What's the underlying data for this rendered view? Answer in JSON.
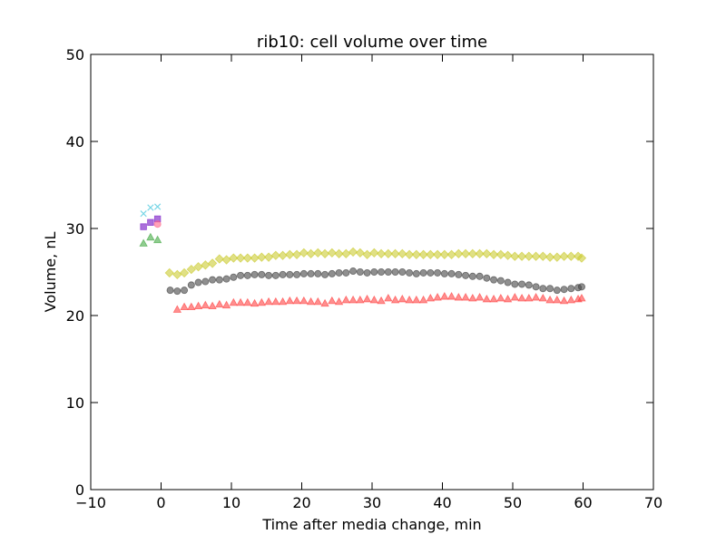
{
  "chart_data": {
    "type": "scatter",
    "title": "rib10: cell volume over time",
    "xlabel": "Time after media change, min",
    "ylabel": "Volume, nL",
    "xlim": [
      -10,
      70
    ],
    "ylim": [
      0,
      50
    ],
    "xticks": [
      -10,
      0,
      10,
      20,
      30,
      40,
      50,
      60,
      70
    ],
    "yticks": [
      0,
      10,
      20,
      30,
      40,
      50
    ],
    "xtick_labels": [
      "−10",
      "0",
      "10",
      "20",
      "30",
      "40",
      "50",
      "60",
      "70"
    ],
    "ytick_labels": [
      "0",
      "10",
      "20",
      "30",
      "40",
      "50"
    ],
    "grid": false,
    "legend": false,
    "series": [
      {
        "marker": "diamond",
        "color": "#cccc33",
        "points": [
          [
            1.2,
            24.9
          ],
          [
            2.3,
            24.7
          ],
          [
            3.3,
            24.9
          ],
          [
            4.3,
            25.3
          ],
          [
            5.3,
            25.6
          ],
          [
            6.3,
            25.8
          ],
          [
            7.3,
            26.0
          ],
          [
            8.3,
            26.5
          ],
          [
            9.3,
            26.4
          ],
          [
            10.3,
            26.6
          ],
          [
            11.3,
            26.6
          ],
          [
            12.3,
            26.6
          ],
          [
            13.3,
            26.6
          ],
          [
            14.3,
            26.7
          ],
          [
            15.3,
            26.7
          ],
          [
            16.3,
            26.9
          ],
          [
            17.3,
            26.9
          ],
          [
            18.3,
            27.0
          ],
          [
            19.3,
            27.0
          ],
          [
            20.3,
            27.2
          ],
          [
            21.3,
            27.1
          ],
          [
            22.3,
            27.2
          ],
          [
            23.3,
            27.1
          ],
          [
            24.3,
            27.2
          ],
          [
            25.3,
            27.1
          ],
          [
            26.3,
            27.1
          ],
          [
            27.3,
            27.3
          ],
          [
            28.3,
            27.2
          ],
          [
            29.3,
            27.0
          ],
          [
            30.3,
            27.2
          ],
          [
            31.3,
            27.1
          ],
          [
            32.3,
            27.1
          ],
          [
            33.3,
            27.1
          ],
          [
            34.3,
            27.1
          ],
          [
            35.3,
            27.0
          ],
          [
            36.3,
            27.0
          ],
          [
            37.3,
            27.0
          ],
          [
            38.3,
            27.0
          ],
          [
            39.3,
            27.0
          ],
          [
            40.3,
            27.0
          ],
          [
            41.3,
            27.0
          ],
          [
            42.3,
            27.1
          ],
          [
            43.3,
            27.1
          ],
          [
            44.3,
            27.1
          ],
          [
            45.3,
            27.1
          ],
          [
            46.3,
            27.1
          ],
          [
            47.3,
            27.0
          ],
          [
            48.3,
            27.0
          ],
          [
            49.3,
            26.9
          ],
          [
            50.3,
            26.8
          ],
          [
            51.3,
            26.8
          ],
          [
            52.3,
            26.8
          ],
          [
            53.3,
            26.8
          ],
          [
            54.3,
            26.8
          ],
          [
            55.3,
            26.7
          ],
          [
            56.3,
            26.7
          ],
          [
            57.3,
            26.8
          ],
          [
            58.3,
            26.8
          ],
          [
            59.3,
            26.8
          ],
          [
            59.8,
            26.6
          ]
        ]
      },
      {
        "marker": "circle",
        "color": "#444444",
        "points": [
          [
            1.3,
            22.9
          ],
          [
            2.3,
            22.8
          ],
          [
            3.3,
            22.9
          ],
          [
            4.3,
            23.5
          ],
          [
            5.3,
            23.8
          ],
          [
            6.3,
            23.9
          ],
          [
            7.3,
            24.1
          ],
          [
            8.3,
            24.1
          ],
          [
            9.3,
            24.2
          ],
          [
            10.3,
            24.4
          ],
          [
            11.3,
            24.6
          ],
          [
            12.3,
            24.6
          ],
          [
            13.3,
            24.7
          ],
          [
            14.3,
            24.7
          ],
          [
            15.3,
            24.6
          ],
          [
            16.3,
            24.6
          ],
          [
            17.3,
            24.7
          ],
          [
            18.3,
            24.7
          ],
          [
            19.3,
            24.7
          ],
          [
            20.3,
            24.8
          ],
          [
            21.3,
            24.8
          ],
          [
            22.3,
            24.8
          ],
          [
            23.3,
            24.7
          ],
          [
            24.3,
            24.8
          ],
          [
            25.3,
            24.9
          ],
          [
            26.3,
            24.9
          ],
          [
            27.3,
            25.1
          ],
          [
            28.3,
            25.0
          ],
          [
            29.3,
            24.9
          ],
          [
            30.3,
            25.0
          ],
          [
            31.3,
            25.0
          ],
          [
            32.3,
            25.0
          ],
          [
            33.3,
            25.0
          ],
          [
            34.3,
            25.0
          ],
          [
            35.3,
            24.9
          ],
          [
            36.3,
            24.8
          ],
          [
            37.3,
            24.9
          ],
          [
            38.3,
            24.9
          ],
          [
            39.3,
            24.9
          ],
          [
            40.3,
            24.8
          ],
          [
            41.3,
            24.8
          ],
          [
            42.3,
            24.7
          ],
          [
            43.3,
            24.6
          ],
          [
            44.3,
            24.5
          ],
          [
            45.3,
            24.5
          ],
          [
            46.3,
            24.3
          ],
          [
            47.3,
            24.1
          ],
          [
            48.3,
            24.0
          ],
          [
            49.3,
            23.8
          ],
          [
            50.3,
            23.6
          ],
          [
            51.3,
            23.6
          ],
          [
            52.3,
            23.5
          ],
          [
            53.3,
            23.3
          ],
          [
            54.3,
            23.1
          ],
          [
            55.3,
            23.1
          ],
          [
            56.3,
            22.9
          ],
          [
            57.3,
            23.0
          ],
          [
            58.3,
            23.1
          ],
          [
            59.3,
            23.2
          ],
          [
            59.8,
            23.3
          ]
        ]
      },
      {
        "marker": "triangle",
        "color": "#ff4444",
        "points": [
          [
            2.3,
            20.7
          ],
          [
            3.3,
            21.0
          ],
          [
            4.3,
            21.0
          ],
          [
            5.3,
            21.1
          ],
          [
            6.3,
            21.2
          ],
          [
            7.3,
            21.1
          ],
          [
            8.3,
            21.3
          ],
          [
            9.3,
            21.2
          ],
          [
            10.3,
            21.5
          ],
          [
            11.3,
            21.5
          ],
          [
            12.3,
            21.5
          ],
          [
            13.3,
            21.4
          ],
          [
            14.3,
            21.5
          ],
          [
            15.3,
            21.6
          ],
          [
            16.3,
            21.6
          ],
          [
            17.3,
            21.6
          ],
          [
            18.3,
            21.7
          ],
          [
            19.3,
            21.7
          ],
          [
            20.3,
            21.7
          ],
          [
            21.3,
            21.6
          ],
          [
            22.3,
            21.6
          ],
          [
            23.3,
            21.4
          ],
          [
            24.3,
            21.7
          ],
          [
            25.3,
            21.6
          ],
          [
            26.3,
            21.8
          ],
          [
            27.3,
            21.8
          ],
          [
            28.3,
            21.8
          ],
          [
            29.3,
            21.9
          ],
          [
            30.3,
            21.8
          ],
          [
            31.3,
            21.7
          ],
          [
            32.3,
            22.0
          ],
          [
            33.3,
            21.8
          ],
          [
            34.3,
            21.9
          ],
          [
            35.3,
            21.8
          ],
          [
            36.3,
            21.8
          ],
          [
            37.3,
            21.8
          ],
          [
            38.3,
            22.0
          ],
          [
            39.3,
            22.1
          ],
          [
            40.3,
            22.2
          ],
          [
            41.3,
            22.2
          ],
          [
            42.3,
            22.1
          ],
          [
            43.3,
            22.1
          ],
          [
            44.3,
            22.0
          ],
          [
            45.3,
            22.1
          ],
          [
            46.3,
            21.9
          ],
          [
            47.3,
            21.9
          ],
          [
            48.3,
            22.0
          ],
          [
            49.3,
            21.9
          ],
          [
            50.3,
            22.1
          ],
          [
            51.3,
            22.0
          ],
          [
            52.3,
            22.0
          ],
          [
            53.3,
            22.1
          ],
          [
            54.3,
            22.0
          ],
          [
            55.3,
            21.8
          ],
          [
            56.3,
            21.8
          ],
          [
            57.3,
            21.7
          ],
          [
            58.3,
            21.8
          ],
          [
            59.3,
            21.9
          ],
          [
            59.8,
            22.0
          ]
        ]
      },
      {
        "marker": "x",
        "color": "#55cce0",
        "points": [
          [
            -2.5,
            31.7
          ],
          [
            -1.5,
            32.4
          ],
          [
            -0.5,
            32.5
          ]
        ]
      },
      {
        "marker": "square",
        "color": "#8833cc",
        "points": [
          [
            -2.5,
            30.2
          ],
          [
            -1.5,
            30.7
          ],
          [
            -0.5,
            31.1
          ]
        ]
      },
      {
        "marker": "circle",
        "color": "#ff6688",
        "points": [
          [
            -0.5,
            30.5
          ]
        ]
      },
      {
        "marker": "triangle",
        "color": "#44aa44",
        "points": [
          [
            -2.5,
            28.3
          ],
          [
            -1.5,
            29.0
          ],
          [
            -0.5,
            28.7
          ]
        ]
      }
    ]
  }
}
